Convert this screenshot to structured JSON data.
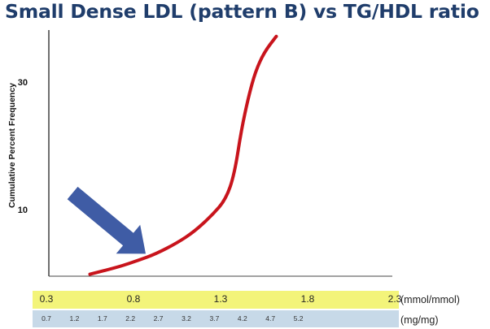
{
  "title": "Small Dense LDL (pattern B) vs TG/HDL ratio",
  "chart_data": {
    "type": "line",
    "title": "Small Dense LDL (pattern B) vs TG/HDL ratio",
    "ylabel": "Cumulative Percent Frequency",
    "ytick_labels": [
      "10",
      "30"
    ],
    "yticks": [
      10,
      30
    ],
    "ylim": [
      0,
      40
    ],
    "xlim": [
      0.3,
      2.3
    ],
    "x_axis_mmol": {
      "unit_label": "(mmol/mmol)",
      "ticks": [
        0.3,
        0.8,
        1.3,
        1.8,
        2.3
      ],
      "tick_labels": [
        "0.3",
        "0.8",
        "1.3",
        "1.8",
        "2.3"
      ]
    },
    "x_axis_mg": {
      "unit_label": "(mg/mg)",
      "tick_labels": [
        "0.7",
        "1.2",
        "1.7",
        "2.2",
        "2.7",
        "3.2",
        "3.7",
        "4.2",
        "4.7",
        "5.2"
      ]
    },
    "grid": false,
    "series": [
      {
        "color": "#c8141c",
        "x": [
          0.55,
          0.72,
          0.82,
          0.93,
          1.05,
          1.15,
          1.25,
          1.33,
          1.38,
          1.42,
          1.46,
          1.5,
          1.55,
          1.62
        ],
        "y": [
          0.3,
          1.5,
          2.4,
          3.5,
          5.2,
          7.0,
          9.5,
          12.0,
          16.0,
          23.0,
          28.0,
          32.0,
          35.0,
          37.5
        ]
      }
    ],
    "annotations": [
      {
        "type": "arrow",
        "color": "#3f5ca5",
        "x_from": 0.45,
        "y_from": 13.0,
        "x_to": 0.87,
        "y_to": 3.5
      }
    ]
  }
}
